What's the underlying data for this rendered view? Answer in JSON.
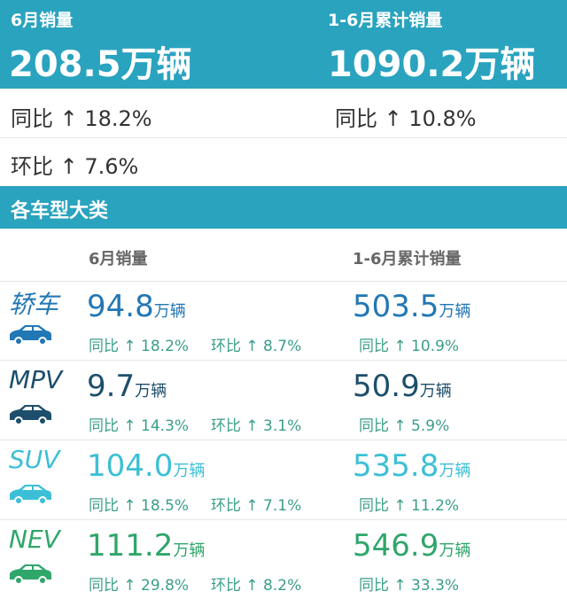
{
  "header": {
    "monthly": {
      "label": "6月销量",
      "total": "208.5万辆",
      "yoy": "同比 ↑ 18.2%",
      "mom": "环比 ↑ 7.6%"
    },
    "cumulative": {
      "label": "1-6月累计销量",
      "total": "1090.2万辆",
      "yoy": "同比 ↑ 10.8%"
    }
  },
  "section_title": "各车型大类",
  "columns": [
    "6月销量",
    "1-6月累计销量"
  ],
  "rows": [
    {
      "name": "轿车",
      "color": "#2277b5",
      "monthly": {
        "value": "94.8",
        "unit": "万辆",
        "yoy": "同比 ↑ 18.2%",
        "mom": "环比 ↑ 8.7%"
      },
      "cumulative": {
        "value": "503.5",
        "unit": "万辆",
        "yoy": "同比 ↑ 10.9%"
      }
    },
    {
      "name": "MPV",
      "color": "#1d4e6b",
      "monthly": {
        "value": "9.7",
        "unit": "万辆",
        "yoy": "同比 ↑ 14.3%",
        "mom": "环比 ↑ 3.1%"
      },
      "cumulative": {
        "value": "50.9",
        "unit": "万辆",
        "yoy": "同比 ↑ 5.9%"
      }
    },
    {
      "name": "SUV",
      "color": "#3cbfd6",
      "monthly": {
        "value": "104.0",
        "unit": "万辆",
        "yoy": "同比 ↑ 18.5%",
        "mom": "环比 ↑ 7.1%"
      },
      "cumulative": {
        "value": "535.8",
        "unit": "万辆",
        "yoy": "同比 ↑ 11.2%"
      }
    },
    {
      "name": "NEV",
      "color": "#2fa66a",
      "monthly": {
        "value": "111.2",
        "unit": "万辆",
        "yoy": "同比 ↑ 29.8%",
        "mom": "环比 ↑ 8.2%"
      },
      "cumulative": {
        "value": "546.9",
        "unit": "万辆",
        "yoy": "同比 ↑ 33.3%"
      }
    }
  ]
}
